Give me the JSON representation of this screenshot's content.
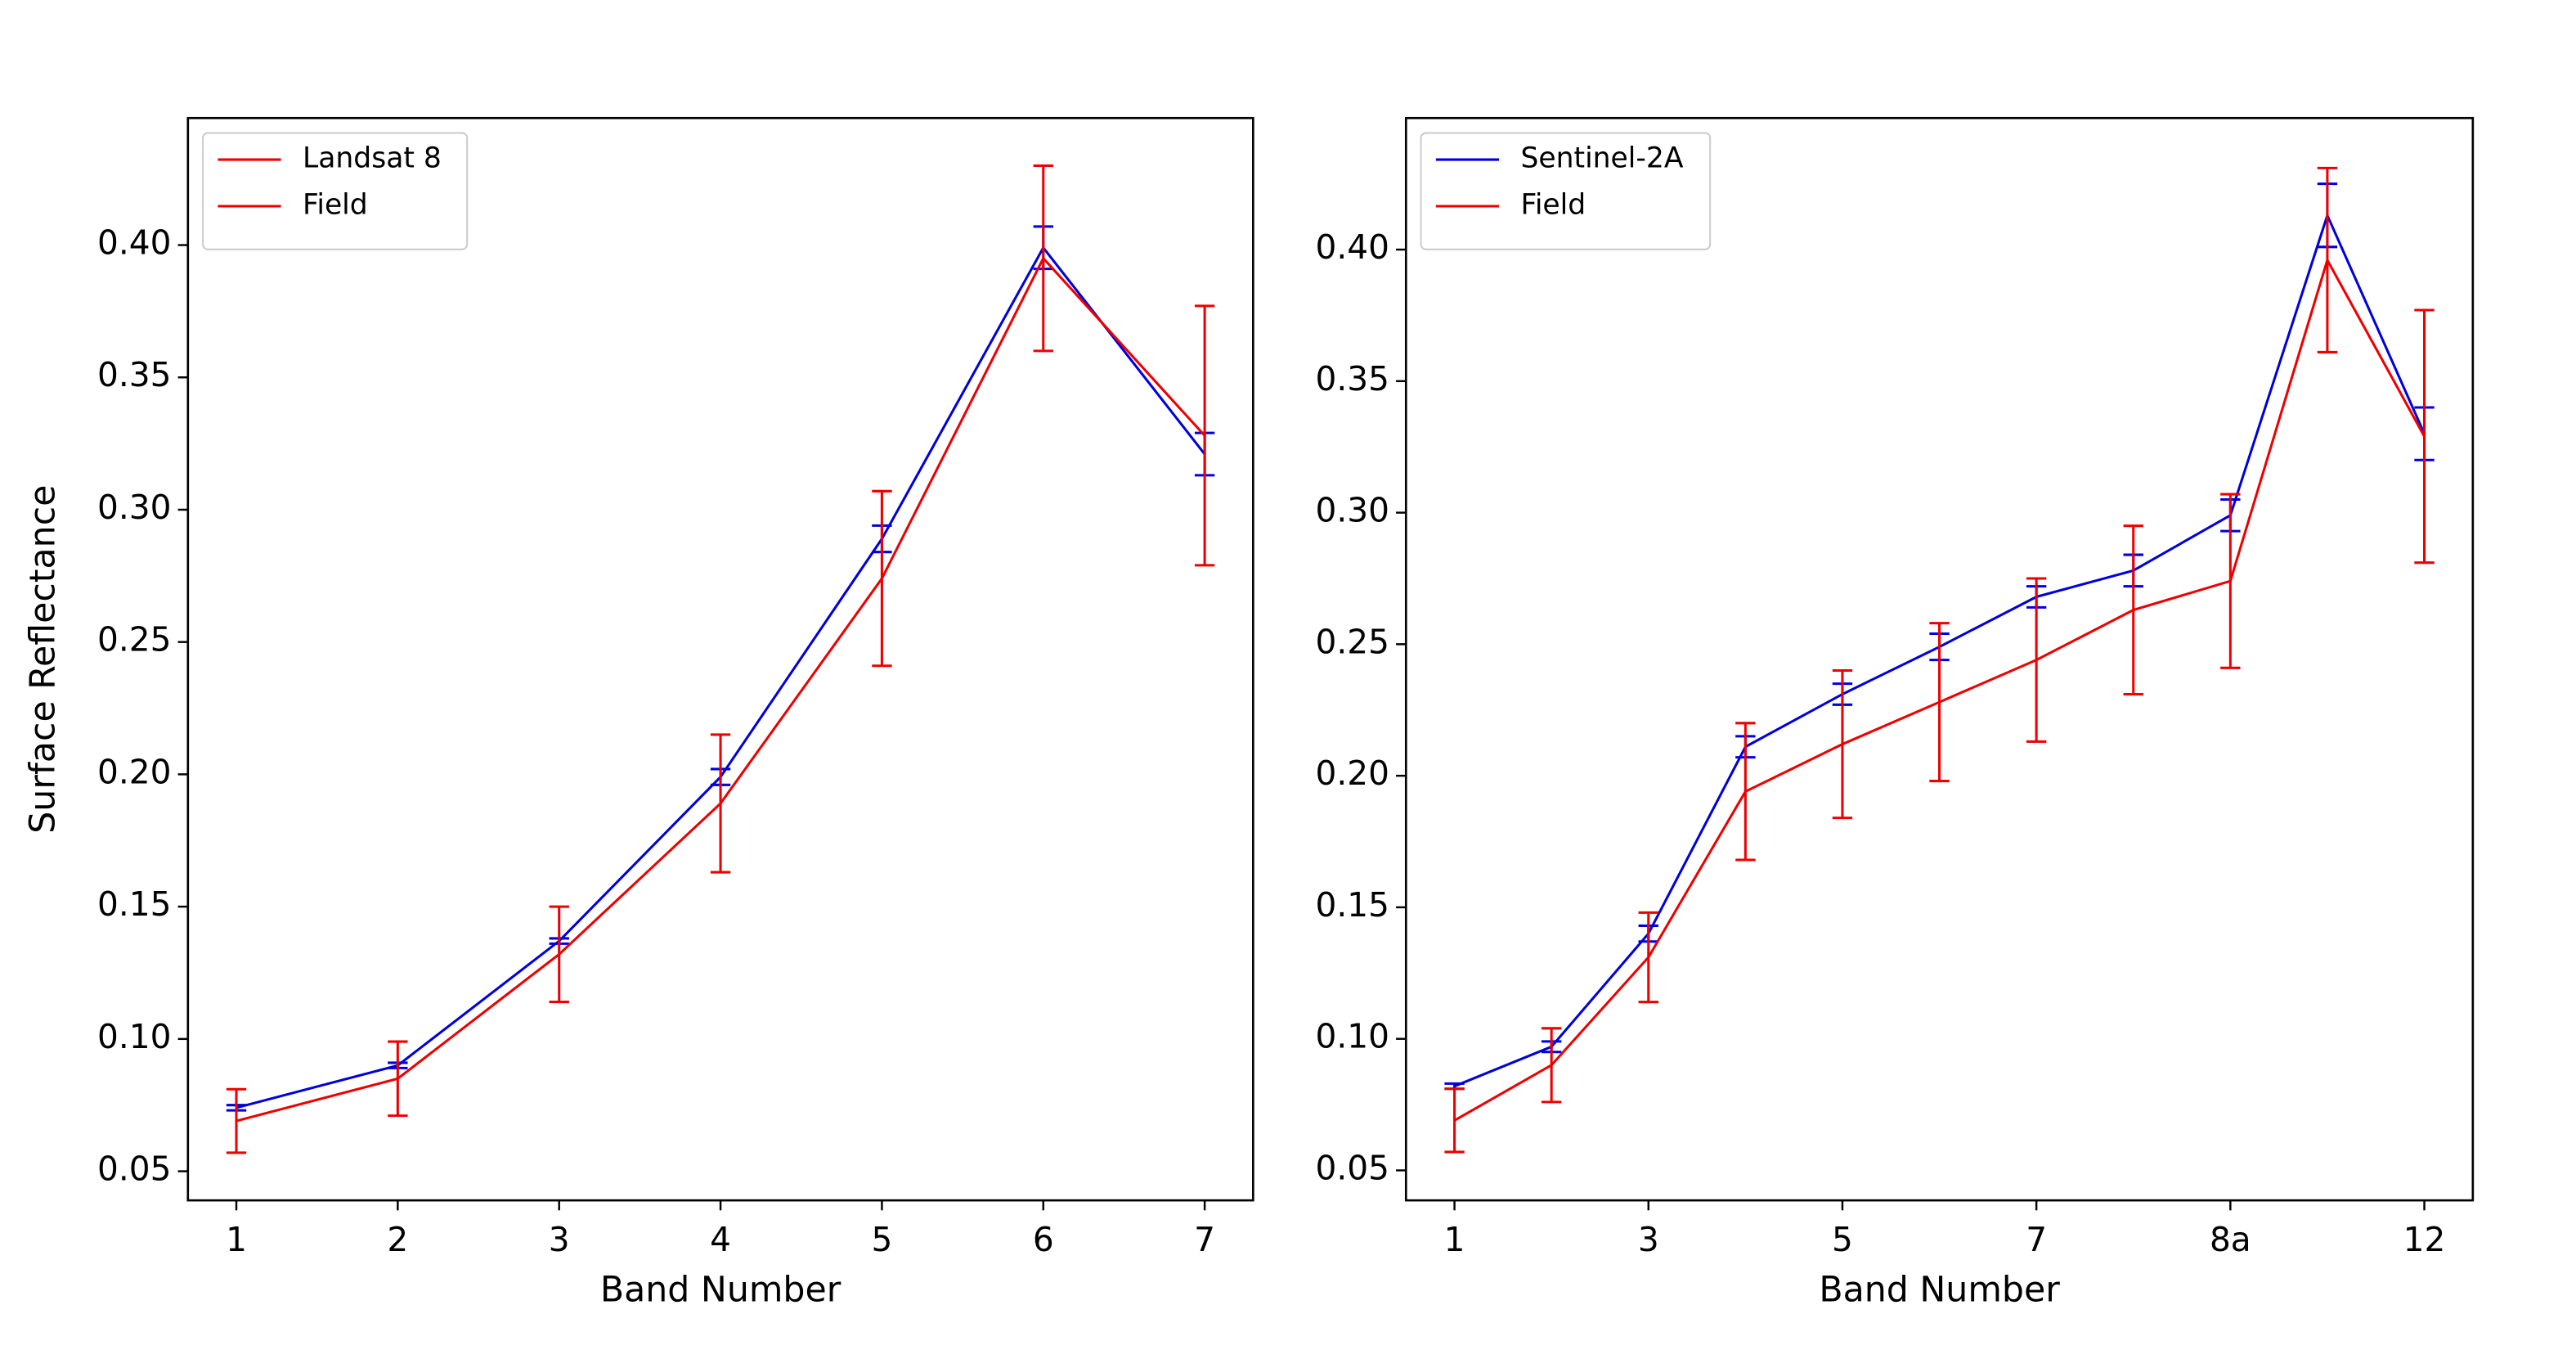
{
  "chart_data": [
    {
      "type": "line",
      "ylabel": "Surface Reflectance",
      "xlabel": "Band Number",
      "x": [
        1,
        2,
        3,
        4,
        5,
        6,
        7
      ],
      "xlim": [
        0.7,
        7.3
      ],
      "xticks": [
        1,
        2,
        3,
        4,
        5,
        6,
        7
      ],
      "ylim": [
        0.039,
        0.448
      ],
      "yticks": [
        0.05,
        {
          "value": 0.1,
          "label": "0.10"
        },
        0.15,
        {
          "value": 0.2,
          "label": "0.20"
        },
        0.25,
        {
          "value": 0.3,
          "label": "0.30"
        },
        0.35,
        {
          "value": 0.4,
          "label": "0.40"
        }
      ],
      "legend": "upper left",
      "series": [
        {
          "name": "Landsat 8",
          "color": "#0000dd",
          "legend_color": "#ee0000",
          "values": [
            0.074,
            0.09,
            0.137,
            0.199,
            0.289,
            0.399,
            0.321
          ],
          "errors": [
            0.001,
            0.001,
            0.001,
            0.003,
            0.005,
            0.008,
            0.008
          ]
        },
        {
          "name": "Field",
          "color": "#ee0000",
          "legend_color": "#ee0000",
          "values": [
            0.069,
            0.085,
            0.132,
            0.189,
            0.274,
            0.395,
            0.328
          ],
          "errors": [
            0.012,
            0.014,
            0.018,
            0.026,
            0.033,
            0.035,
            0.049
          ]
        }
      ]
    },
    {
      "type": "line",
      "xlabel": "Band Number",
      "categories": [
        "1",
        null,
        "3",
        null,
        "5",
        null,
        "7",
        null,
        "8a",
        null,
        "12"
      ],
      "ylim": [
        0.0386,
        0.45
      ],
      "yticks": [
        0.05,
        {
          "value": 0.1,
          "label": "0.10"
        },
        0.15,
        {
          "value": 0.2,
          "label": "0.20"
        },
        0.25,
        {
          "value": 0.3,
          "label": "0.30"
        },
        0.35,
        {
          "value": 0.4,
          "label": "0.40"
        }
      ],
      "legend": "upper left",
      "series": [
        {
          "name": "Sentinel-2A",
          "color": "#0000dd",
          "legend_color": "#0000dd",
          "values": [
            0.082,
            0.097,
            0.14,
            0.211,
            0.231,
            0.249,
            0.268,
            0.278,
            0.299,
            0.413,
            0.33
          ],
          "errors": [
            0.001,
            0.002,
            0.003,
            0.004,
            0.004,
            0.005,
            0.004,
            0.006,
            0.006,
            0.012,
            0.01
          ]
        },
        {
          "name": "Field",
          "color": "#ee0000",
          "legend_color": "#ee0000",
          "values": [
            0.069,
            0.09,
            0.131,
            0.194,
            0.212,
            0.228,
            0.244,
            0.263,
            0.274,
            0.396,
            0.329
          ],
          "errors": [
            0.012,
            0.014,
            0.017,
            0.026,
            0.028,
            0.03,
            0.031,
            0.032,
            0.033,
            0.035,
            0.048
          ]
        }
      ]
    }
  ]
}
